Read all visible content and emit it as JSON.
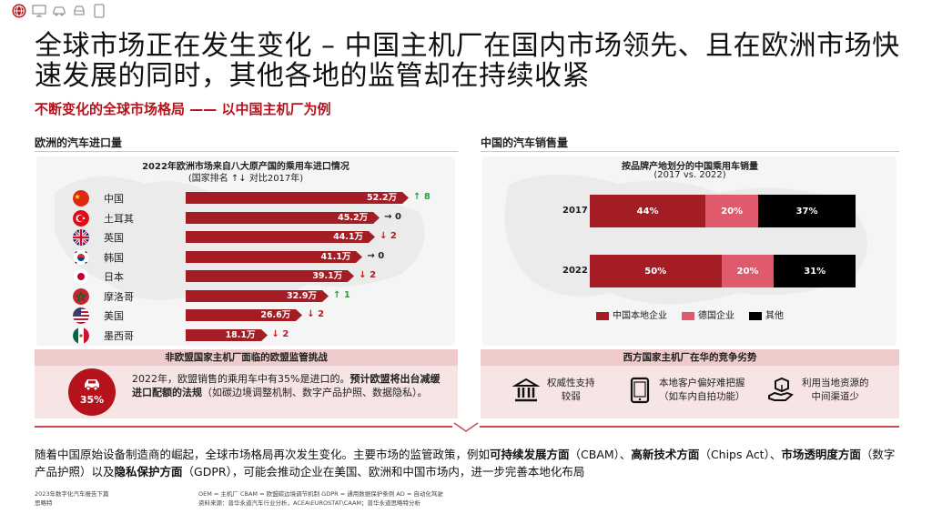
{
  "header": {
    "title": "全球市场正在发生变化 – 中国主机厂在国内市场领先、且在欧洲市场快速发展的同时，其他各地的监管却在持续收紧",
    "subtitle": "不断变化的全球市场格局 —— 以中国主机厂为例",
    "icons": [
      "globe-icon",
      "computer-icon",
      "car-icon",
      "car-front-icon",
      "tablet-icon"
    ]
  },
  "left_section": {
    "heading": "欧洲的汽车进口量",
    "chart_title": "2022年欧洲市场来自八大原产国的乘用车进口情况",
    "chart_subtitle": "(国家排名 ↑↓ 对比2017年)"
  },
  "right_section": {
    "heading": "中国的汽车销售量",
    "chart_title": "按品牌产地划分的中国乘用车销量",
    "chart_subtitle": "(2017 vs. 2022)"
  },
  "chart_data": [
    {
      "type": "bar",
      "title": "2022年欧洲市场来自八大原产国的乘用车进口情况",
      "subtitle": "(国家排名 ↑↓ 对比2017年)",
      "categories": [
        "中国",
        "土耳其",
        "英国",
        "韩国",
        "日本",
        "摩洛哥",
        "美国",
        "墨西哥"
      ],
      "values": [
        52.2,
        45.2,
        44.1,
        41.1,
        39.1,
        32.9,
        26.6,
        18.1
      ],
      "labels": [
        "52.2万",
        "45.2万",
        "44.1万",
        "41.1万",
        "39.1万",
        "32.9万",
        "26.6万",
        "18.1万"
      ],
      "rank_change": [
        {
          "dir": "up",
          "symbol": "↑",
          "value": "8"
        },
        {
          "dir": "flat",
          "symbol": "→",
          "value": "0"
        },
        {
          "dir": "down",
          "symbol": "↓",
          "value": "2"
        },
        {
          "dir": "flat",
          "symbol": "→",
          "value": "0"
        },
        {
          "dir": "down",
          "symbol": "↓",
          "value": "2"
        },
        {
          "dir": "up",
          "symbol": "↑",
          "value": "1"
        },
        {
          "dir": "down",
          "symbol": "↓",
          "value": "2"
        },
        {
          "dir": "down",
          "symbol": "↓",
          "value": "2"
        }
      ],
      "xlim": [
        0,
        55
      ]
    },
    {
      "type": "bar",
      "stacked": true,
      "horizontal": true,
      "title": "按品牌产地划分的中国乘用车销量",
      "subtitle": "(2017 vs. 2022)",
      "categories": [
        "2017",
        "2022"
      ],
      "series": [
        {
          "name": "中国本地企业",
          "values": [
            44,
            50
          ],
          "labels": [
            "44%",
            "50%"
          ],
          "color": "#a51d24"
        },
        {
          "name": "德国企业",
          "values": [
            20,
            20
          ],
          "labels": [
            "20%",
            "20%"
          ],
          "color": "#df5a6c"
        },
        {
          "name": "其他",
          "values": [
            37,
            31
          ],
          "labels": [
            "37%",
            "31%"
          ],
          "color": "#000000"
        }
      ],
      "xlim": [
        0,
        101
      ]
    }
  ],
  "panel_left": {
    "heading": "非欧盟国家主机厂面临的欧盟监管挑战",
    "badge": "35%",
    "text_plain": "2022年，欧盟销售的乘用车中有35%是进口的。",
    "text_bold": "预计欧盟将出台减缓进口配额的法规",
    "text_tail": "（如碳边境调整机制、数字产品护照、数据隐私）。"
  },
  "panel_right": {
    "heading": "西方国家主机厂在华的竞争劣势",
    "items": [
      {
        "icon": "institution-icon",
        "text_line1": "权威性支持",
        "text_line2": "较弱"
      },
      {
        "icon": "tablet-icon",
        "text_line1": "本地客户偏好难把握",
        "text_line2": "（如车内自拍功能）"
      },
      {
        "icon": "hand-box-icon",
        "text_line1": "利用当地资源的",
        "text_line2": "中间渠道少"
      }
    ]
  },
  "bottom": {
    "p1": "随着中国原始设备制造商的崛起，全球市场格局再次发生变化。主要市场的监管政策，例如",
    "b1": "可持续发展方面",
    "p2": "（CBAM）、",
    "b2": "高新技术方面",
    "p3": "（Chips Act）、",
    "b3": "市场透明度方面",
    "p4": "（数字产品护照）以及",
    "b4": "隐私保护方面",
    "p5": "（GDPR），可能会推动企业在美国、欧洲和中国市场内，进一步完善本地化布局"
  },
  "footer": {
    "left_line1": "2023年数字化汽车报告下篇",
    "left_line2": "思略特",
    "mid_line1": "OEM = 主机厂  CBAM = 欧盟碳边境调节机制 GDPR = 通用数据保护条例   AD = 自动化驾驶",
    "mid_line2": "资料来源：普华永道汽车行业分析，ACEA\\EUROSTAT\\CAAM；普华永道思略特分析"
  }
}
